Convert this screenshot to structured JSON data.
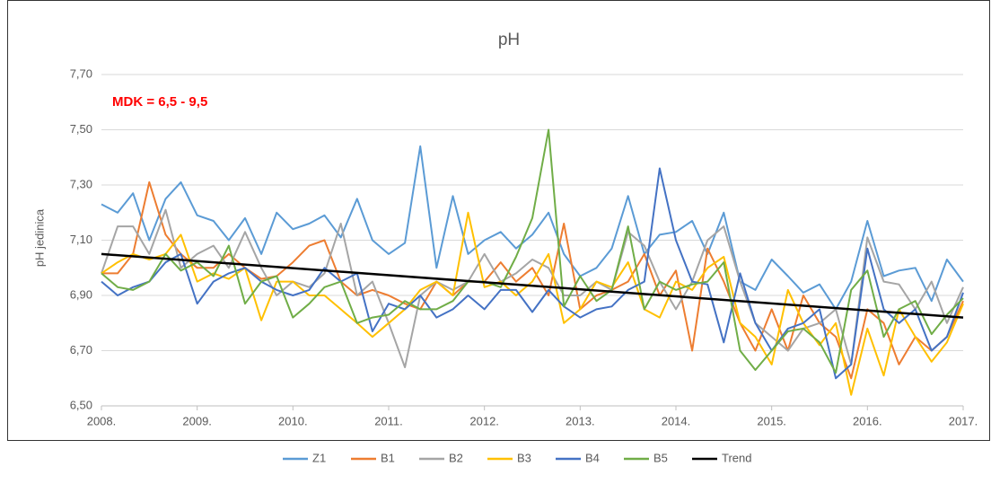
{
  "chart_data": {
    "type": "line",
    "title": "pH",
    "y_label": "pH jedinica",
    "annotation": "MDK = 6,5 - 9,5",
    "annotation_color": "#ff0000",
    "grid": true,
    "legend": "bottom",
    "x": [
      2008,
      2008.17,
      2008.33,
      2008.5,
      2008.67,
      2008.83,
      2009,
      2009.17,
      2009.33,
      2009.5,
      2009.67,
      2009.83,
      2010,
      2010.17,
      2010.33,
      2010.5,
      2010.67,
      2010.83,
      2011,
      2011.17,
      2011.33,
      2011.5,
      2011.67,
      2011.83,
      2012,
      2012.17,
      2012.33,
      2012.5,
      2012.67,
      2012.83,
      2013,
      2013.17,
      2013.33,
      2013.5,
      2013.67,
      2013.83,
      2014,
      2014.17,
      2014.33,
      2014.5,
      2014.67,
      2014.83,
      2015,
      2015.17,
      2015.33,
      2015.5,
      2015.67,
      2015.83,
      2016,
      2016.17,
      2016.33,
      2016.5,
      2016.67,
      2016.83,
      2017
    ],
    "xlim": [
      2008,
      2017
    ],
    "xticks": [
      {
        "value": 2008,
        "label": "2008."
      },
      {
        "value": 2009,
        "label": "2009."
      },
      {
        "value": 2010,
        "label": "2010."
      },
      {
        "value": 2011,
        "label": "2011."
      },
      {
        "value": 2012,
        "label": "2012."
      },
      {
        "value": 2013,
        "label": "2013."
      },
      {
        "value": 2014,
        "label": "2014."
      },
      {
        "value": 2015,
        "label": "2015."
      },
      {
        "value": 2016,
        "label": "2016."
      },
      {
        "value": 2017,
        "label": "2017."
      }
    ],
    "ylim": [
      6.5,
      7.7
    ],
    "yticks": [
      {
        "value": 6.5,
        "label": "6,50"
      },
      {
        "value": 6.7,
        "label": "6,70"
      },
      {
        "value": 6.9,
        "label": "6,90"
      },
      {
        "value": 7.1,
        "label": "7,10"
      },
      {
        "value": 7.3,
        "label": "7,30"
      },
      {
        "value": 7.5,
        "label": "7,50"
      },
      {
        "value": 7.7,
        "label": "7,70"
      }
    ],
    "series": [
      {
        "name": "Z1",
        "color": "#5b9bd5",
        "values": [
          7.23,
          7.2,
          7.27,
          7.1,
          7.25,
          7.31,
          7.19,
          7.17,
          7.1,
          7.18,
          7.05,
          7.2,
          7.14,
          7.16,
          7.19,
          7.11,
          7.25,
          7.1,
          7.05,
          7.09,
          7.44,
          7.0,
          7.26,
          7.05,
          7.1,
          7.13,
          7.07,
          7.12,
          7.2,
          7.05,
          6.97,
          7.0,
          7.07,
          7.26,
          7.05,
          7.12,
          7.13,
          7.17,
          7.05,
          7.2,
          6.95,
          6.92,
          7.03,
          6.97,
          6.91,
          6.94,
          6.85,
          6.95,
          7.17,
          6.97,
          6.99,
          7.0,
          6.88,
          7.03,
          6.95
        ]
      },
      {
        "name": "B1",
        "color": "#ed7d31",
        "values": [
          6.98,
          6.98,
          7.05,
          7.31,
          7.12,
          7.05,
          7.0,
          7.0,
          7.05,
          7.0,
          6.96,
          6.97,
          7.02,
          7.08,
          7.1,
          6.95,
          6.9,
          6.92,
          6.9,
          6.87,
          6.85,
          6.95,
          6.9,
          6.95,
          6.95,
          7.02,
          6.95,
          7.0,
          6.9,
          7.16,
          6.85,
          6.9,
          6.92,
          6.95,
          7.05,
          6.9,
          6.99,
          6.7,
          7.07,
          6.95,
          6.8,
          6.7,
          6.85,
          6.7,
          6.9,
          6.8,
          6.75,
          6.6,
          6.85,
          6.8,
          6.65,
          6.75,
          6.7,
          6.75,
          6.88
        ]
      },
      {
        "name": "B2",
        "color": "#a5a5a5",
        "values": [
          6.98,
          7.15,
          7.15,
          7.05,
          7.21,
          7.0,
          7.05,
          7.08,
          7.0,
          7.13,
          7.0,
          6.9,
          6.95,
          6.93,
          6.98,
          7.16,
          6.9,
          6.95,
          6.8,
          6.64,
          6.9,
          6.95,
          6.92,
          6.95,
          7.05,
          6.95,
          6.98,
          7.03,
          7.0,
          6.9,
          6.9,
          6.95,
          6.92,
          7.13,
          7.08,
          6.95,
          6.85,
          6.95,
          7.1,
          7.15,
          6.95,
          6.8,
          6.75,
          6.7,
          6.78,
          6.8,
          6.85,
          6.65,
          7.11,
          6.95,
          6.94,
          6.85,
          6.95,
          6.8,
          6.93
        ]
      },
      {
        "name": "B3",
        "color": "#ffc000",
        "values": [
          6.98,
          7.02,
          7.05,
          7.03,
          7.05,
          7.12,
          6.95,
          6.98,
          6.96,
          7.0,
          6.81,
          6.95,
          6.95,
          6.9,
          6.9,
          6.85,
          6.8,
          6.75,
          6.8,
          6.85,
          6.92,
          6.95,
          6.9,
          7.2,
          6.93,
          6.95,
          6.9,
          6.95,
          7.05,
          6.8,
          6.85,
          6.95,
          6.93,
          7.02,
          6.85,
          6.82,
          6.95,
          6.92,
          7.0,
          7.04,
          6.8,
          6.75,
          6.65,
          6.92,
          6.8,
          6.72,
          6.8,
          6.54,
          6.78,
          6.61,
          6.85,
          6.75,
          6.66,
          6.73,
          6.87
        ]
      },
      {
        "name": "B4",
        "color": "#4472c4",
        "values": [
          6.95,
          6.9,
          6.93,
          6.95,
          7.02,
          7.05,
          6.87,
          6.95,
          6.98,
          7.0,
          6.95,
          6.92,
          6.9,
          6.92,
          7.0,
          6.95,
          6.98,
          6.77,
          6.87,
          6.85,
          6.9,
          6.82,
          6.85,
          6.9,
          6.85,
          6.92,
          6.92,
          6.84,
          6.92,
          6.86,
          6.82,
          6.85,
          6.86,
          6.92,
          6.95,
          7.36,
          7.1,
          6.95,
          6.94,
          6.73,
          6.98,
          6.8,
          6.7,
          6.78,
          6.8,
          6.85,
          6.6,
          6.65,
          7.07,
          6.85,
          6.8,
          6.85,
          6.7,
          6.75,
          6.91
        ]
      },
      {
        "name": "B5",
        "color": "#70ad47",
        "values": [
          6.98,
          6.93,
          6.92,
          6.95,
          7.05,
          6.99,
          7.02,
          6.97,
          7.08,
          6.87,
          6.95,
          6.97,
          6.82,
          6.87,
          6.93,
          6.95,
          6.8,
          6.82,
          6.83,
          6.88,
          6.85,
          6.85,
          6.88,
          6.95,
          6.95,
          6.93,
          7.04,
          7.18,
          7.5,
          6.86,
          6.97,
          6.88,
          6.92,
          7.15,
          6.85,
          6.95,
          6.92,
          6.94,
          6.95,
          7.02,
          6.7,
          6.63,
          6.7,
          6.77,
          6.78,
          6.73,
          6.62,
          6.92,
          6.99,
          6.75,
          6.85,
          6.88,
          6.76,
          6.83,
          6.89
        ]
      },
      {
        "name": "Trend",
        "color": "#000000",
        "x": [
          2008,
          2017
        ],
        "values": [
          7.05,
          6.82
        ]
      }
    ]
  }
}
